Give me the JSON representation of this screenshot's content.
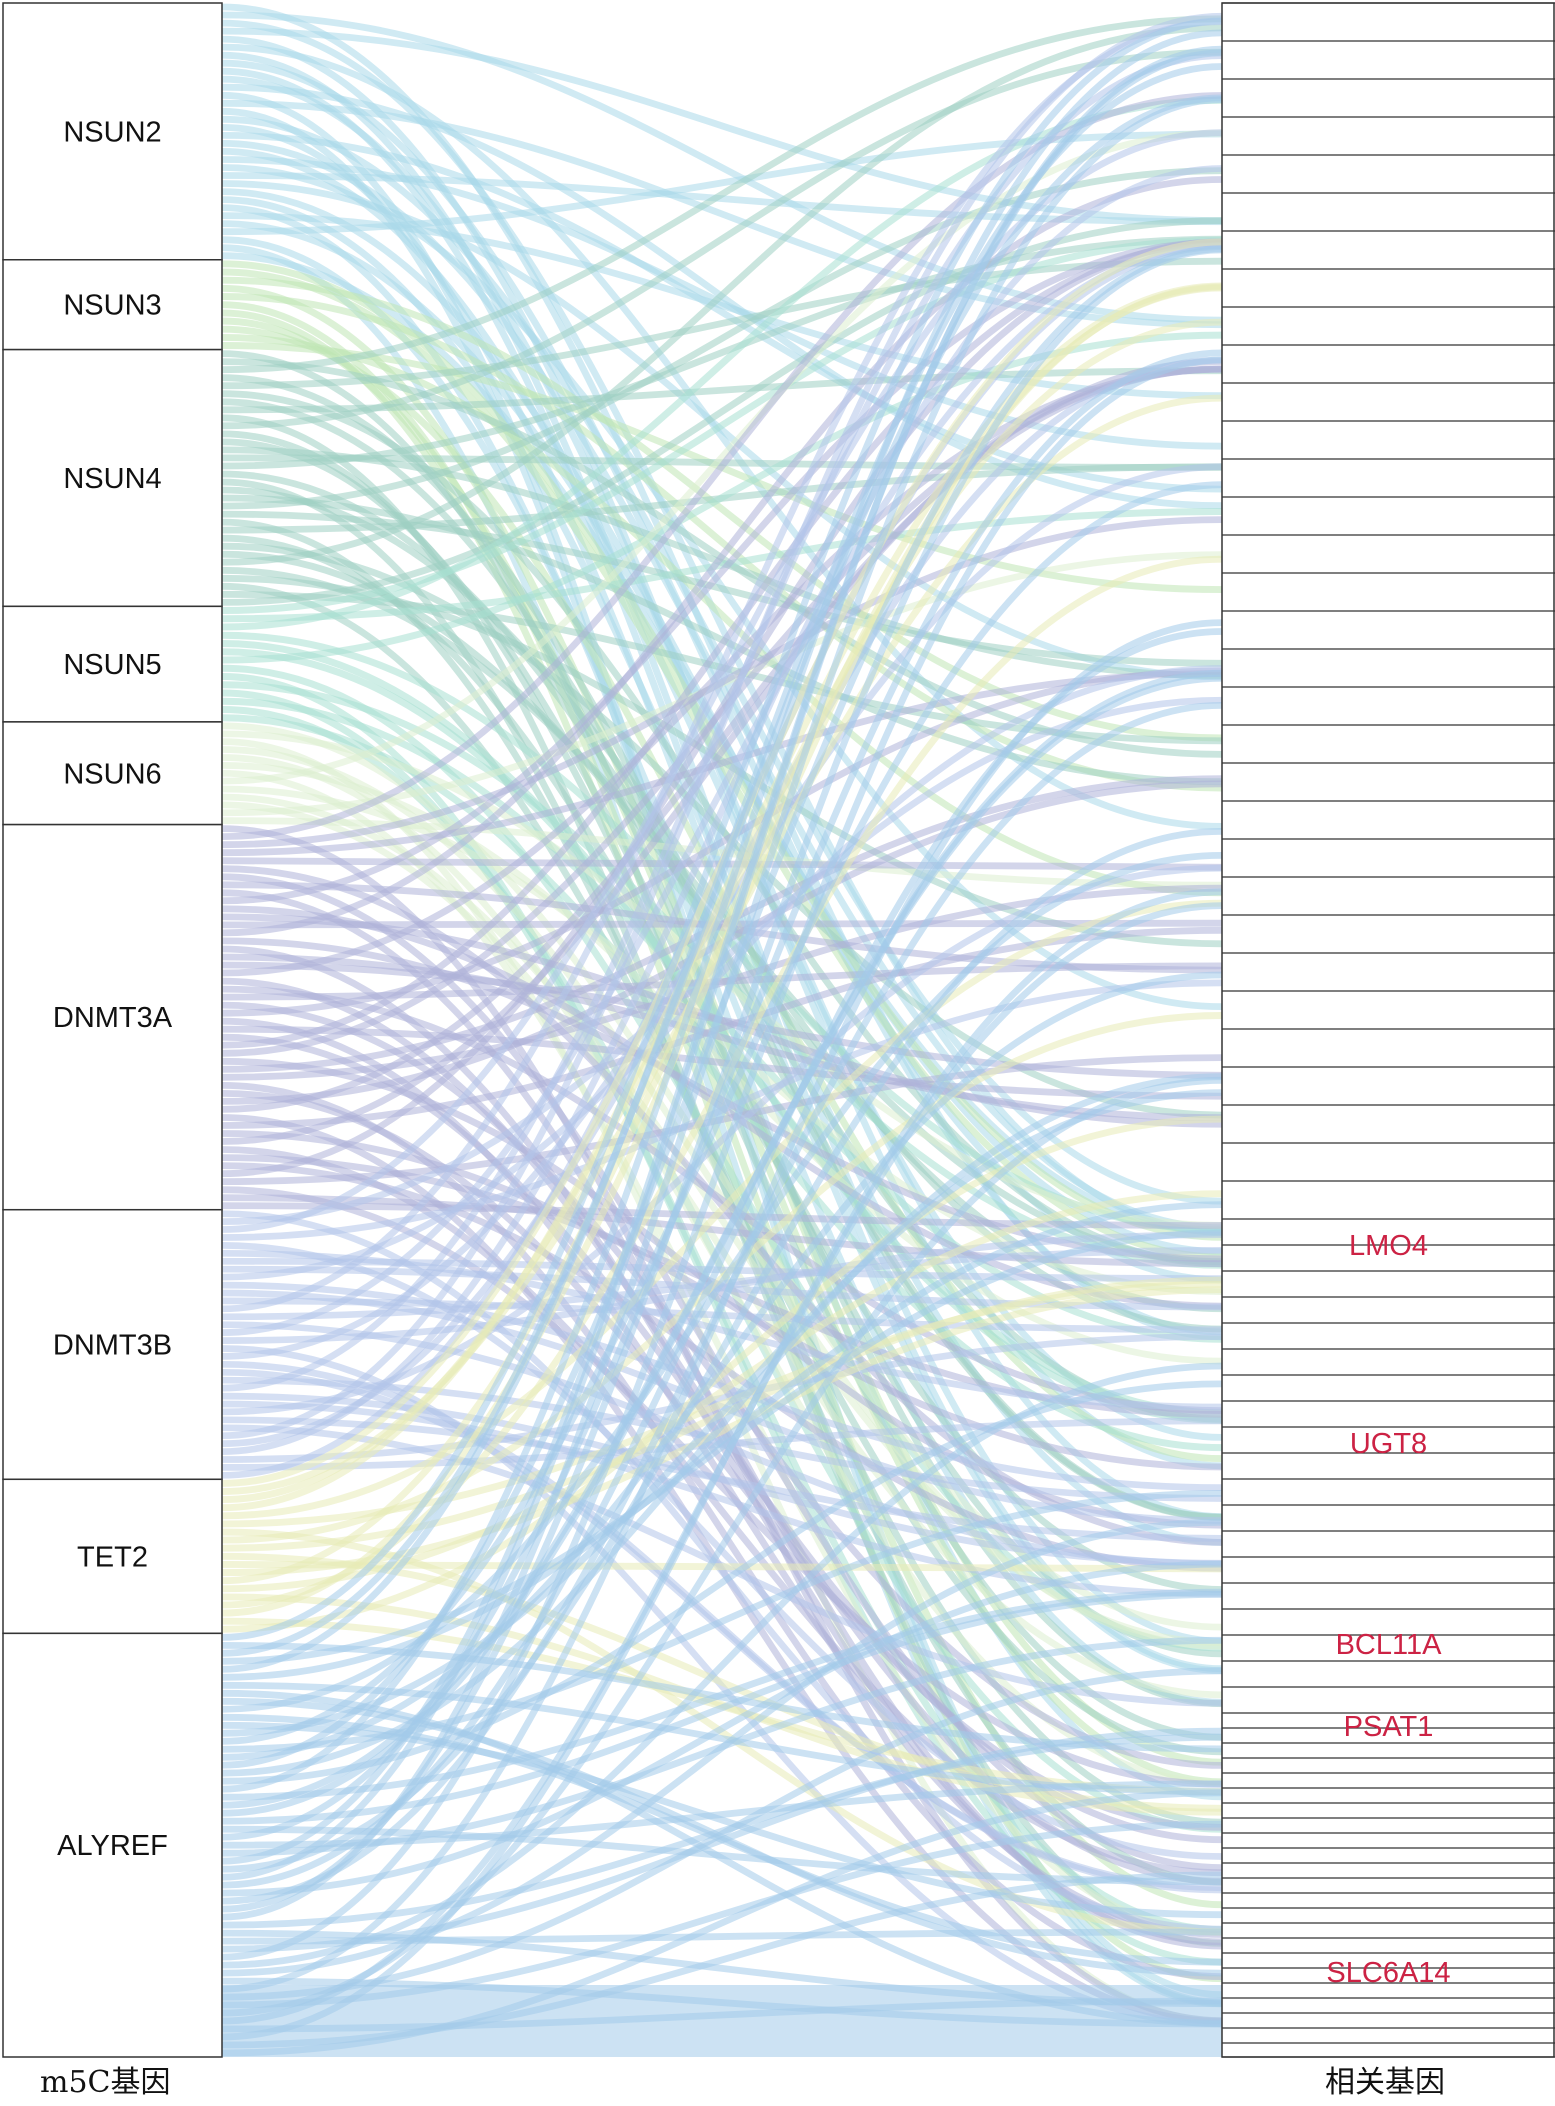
{
  "chart_data": {
    "type": "sankey",
    "left_axis_label": "m5C基因",
    "right_axis_label": "相关基因",
    "sources": [
      {
        "name": "NSUN2",
        "weight": 20,
        "color": "#a9d8ea"
      },
      {
        "name": "NSUN3",
        "weight": 7,
        "color": "#bfe6b5"
      },
      {
        "name": "NSUN4",
        "weight": 20,
        "color": "#9fcfc2"
      },
      {
        "name": "NSUN5",
        "weight": 9,
        "color": "#a7e0d2"
      },
      {
        "name": "NSUN6",
        "weight": 8,
        "color": "#dcefcf"
      },
      {
        "name": "DNMT3A",
        "weight": 30,
        "color": "#aeb2d8"
      },
      {
        "name": "DNMT3B",
        "weight": 21,
        "color": "#b3c5ea"
      },
      {
        "name": "TET2",
        "weight": 12,
        "color": "#e7ebb7"
      },
      {
        "name": "ALYREF",
        "weight": 33,
        "color": "#a2cbea"
      }
    ],
    "highlighted_targets": [
      {
        "name": "LMO4"
      },
      {
        "name": "UGT8"
      },
      {
        "name": "BCL11A"
      },
      {
        "name": "PSAT1"
      },
      {
        "name": "SLC6A14"
      }
    ]
  },
  "colors": {
    "highlight_label": "#cc2244",
    "node_border": "#333333"
  }
}
